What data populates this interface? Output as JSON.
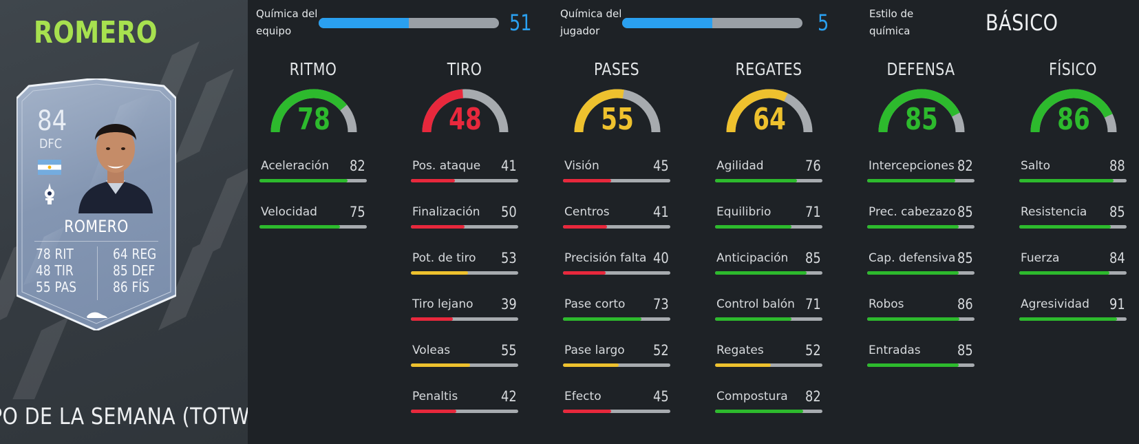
{
  "colors": {
    "green": "#2dba2d",
    "red": "#e8283c",
    "yellow": "#eec12e",
    "track": "#a7abaf",
    "blue": "#2aa0f0"
  },
  "player": {
    "name_title": "ROMERO",
    "promo": "PO DE LA SEMANA (TOTW)"
  },
  "card": {
    "rating": "84",
    "position": "DFC",
    "name": "ROMERO",
    "flag_icon": "argentina-flag-icon",
    "club_icon": "tottenham-badge-icon",
    "stats_left": [
      {
        "value": "78",
        "label": "RIT"
      },
      {
        "value": "48",
        "label": "TIR"
      },
      {
        "value": "55",
        "label": "PAS"
      }
    ],
    "stats_right": [
      {
        "value": "64",
        "label": "REG"
      },
      {
        "value": "85",
        "label": "DEF"
      },
      {
        "value": "86",
        "label": "FÍS"
      }
    ]
  },
  "chemistry": {
    "team": {
      "label": "Química del\nequipo",
      "value": "51",
      "fraction": 0.5
    },
    "player": {
      "label": "Química del\njugador",
      "value": "5",
      "fraction": 0.5
    },
    "style": {
      "label": "Estilo de\nquímica",
      "value": "BÁSICO"
    }
  },
  "categories": [
    {
      "title": "RITMO",
      "value": "78",
      "color": "green",
      "attrs": [
        {
          "label": "Aceleración",
          "value": "82",
          "color": "green"
        },
        {
          "label": "Velocidad",
          "value": "75",
          "color": "green"
        }
      ]
    },
    {
      "title": "TIRO",
      "value": "48",
      "color": "red",
      "attrs": [
        {
          "label": "Pos. ataque",
          "value": "41",
          "color": "red"
        },
        {
          "label": "Finalización",
          "value": "50",
          "color": "red"
        },
        {
          "label": "Pot. de tiro",
          "value": "53",
          "color": "yellow"
        },
        {
          "label": "Tiro lejano",
          "value": "39",
          "color": "red"
        },
        {
          "label": "Voleas",
          "value": "55",
          "color": "yellow"
        },
        {
          "label": "Penaltis",
          "value": "42",
          "color": "red"
        }
      ]
    },
    {
      "title": "PASES",
      "value": "55",
      "color": "yellow",
      "attrs": [
        {
          "label": "Visión",
          "value": "45",
          "color": "red"
        },
        {
          "label": "Centros",
          "value": "41",
          "color": "red"
        },
        {
          "label": "Precisión falta",
          "value": "40",
          "color": "red"
        },
        {
          "label": "Pase corto",
          "value": "73",
          "color": "green"
        },
        {
          "label": "Pase largo",
          "value": "52",
          "color": "yellow"
        },
        {
          "label": "Efecto",
          "value": "45",
          "color": "red"
        }
      ]
    },
    {
      "title": "REGATES",
      "value": "64",
      "color": "yellow",
      "attrs": [
        {
          "label": "Agilidad",
          "value": "76",
          "color": "green"
        },
        {
          "label": "Equilibrio",
          "value": "71",
          "color": "green"
        },
        {
          "label": "Anticipación",
          "value": "85",
          "color": "green"
        },
        {
          "label": "Control balón",
          "value": "71",
          "color": "green"
        },
        {
          "label": "Regates",
          "value": "52",
          "color": "yellow"
        },
        {
          "label": "Compostura",
          "value": "82",
          "color": "green"
        }
      ]
    },
    {
      "title": "DEFENSA",
      "value": "85",
      "color": "green",
      "attrs": [
        {
          "label": "Intercepciones",
          "value": "82",
          "color": "green"
        },
        {
          "label": "Prec. cabezazo",
          "value": "85",
          "color": "green"
        },
        {
          "label": "Cap. defensiva",
          "value": "85",
          "color": "green"
        },
        {
          "label": "Robos",
          "value": "86",
          "color": "green"
        },
        {
          "label": "Entradas",
          "value": "85",
          "color": "green"
        }
      ]
    },
    {
      "title": "FÍSICO",
      "value": "86",
      "color": "green",
      "attrs": [
        {
          "label": "Salto",
          "value": "88",
          "color": "green"
        },
        {
          "label": "Resistencia",
          "value": "85",
          "color": "green"
        },
        {
          "label": "Fuerza",
          "value": "84",
          "color": "green"
        },
        {
          "label": "Agresividad",
          "value": "91",
          "color": "green"
        }
      ]
    }
  ]
}
